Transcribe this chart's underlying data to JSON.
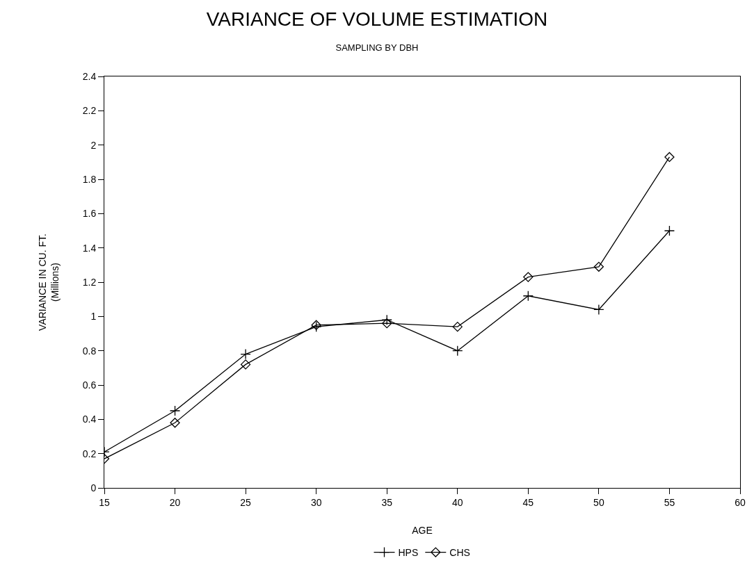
{
  "chart_data": {
    "type": "line",
    "title": "VARIANCE OF VOLUME ESTIMATION",
    "subtitle": "SAMPLING BY DBH",
    "xlabel": "AGE",
    "ylabel": "VARIANCE IN CU. FT.\n(Millions)",
    "x": [
      15,
      20,
      25,
      30,
      35,
      40,
      45,
      50,
      55
    ],
    "series": [
      {
        "name": "HPS",
        "color": "#000000",
        "marker": "cross",
        "values": [
          0.21,
          0.45,
          0.78,
          0.94,
          0.98,
          0.8,
          1.12,
          1.04,
          1.5
        ]
      },
      {
        "name": "CHS",
        "color": "#000000",
        "marker": "diamond",
        "values": [
          0.17,
          0.38,
          0.72,
          0.95,
          0.96,
          0.94,
          1.23,
          1.29,
          1.93
        ]
      }
    ],
    "xlim": [
      15,
      60
    ],
    "xticks": [
      15,
      20,
      25,
      30,
      35,
      40,
      45,
      50,
      55,
      60
    ],
    "ylim": [
      0,
      2.4
    ],
    "yticks": [
      0,
      0.2,
      0.4,
      0.6,
      0.8,
      1,
      1.2,
      1.4,
      1.6,
      1.8,
      2,
      2.2,
      2.4
    ],
    "grid": false,
    "legend": "bottom",
    "line_style": "solid"
  }
}
